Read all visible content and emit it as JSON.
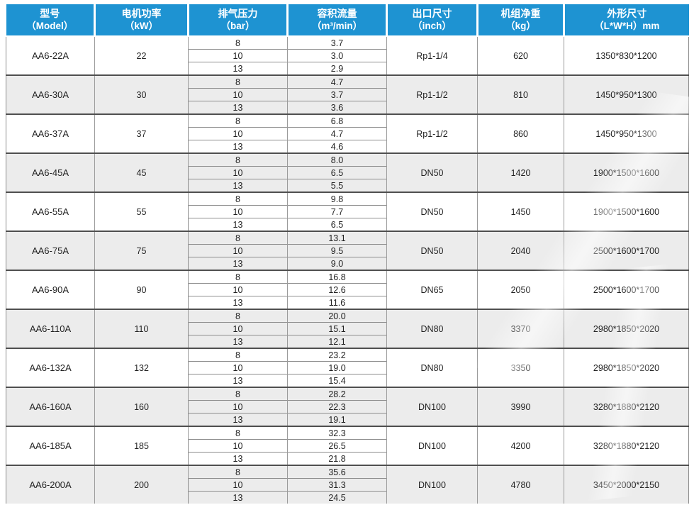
{
  "colors": {
    "header_bg": "#1E93D2",
    "header_text": "#FFFFFF",
    "row_bg": "#FFFFFF",
    "row_alt_bg": "#ECECEC",
    "group_border": "#4F4F4F",
    "cell_border": "#9B9B9B",
    "body_text": "#222222"
  },
  "table": {
    "headers": [
      {
        "line1": "型号",
        "line2": "（Model）"
      },
      {
        "line1": "电机功率",
        "line2": "（kW）"
      },
      {
        "line1": "排气压力",
        "line2": "（bar）"
      },
      {
        "line1": "容积流量",
        "line2": "（m³/min）"
      },
      {
        "line1": "出口尺寸",
        "line2": "（inch）"
      },
      {
        "line1": "机组净重",
        "line2": "（kg）"
      },
      {
        "line1": "外形尺寸",
        "line2": "（L*W*H）mm"
      }
    ],
    "models": [
      {
        "model": "AA6-22A",
        "power": "22",
        "rows": [
          [
            "8",
            "3.7"
          ],
          [
            "10",
            "3.0"
          ],
          [
            "13",
            "2.9"
          ]
        ],
        "outlet": "Rp1-1/4",
        "weight": "620",
        "dims": "1350*830*1200"
      },
      {
        "model": "AA6-30A",
        "power": "30",
        "rows": [
          [
            "8",
            "4.7"
          ],
          [
            "10",
            "3.7"
          ],
          [
            "13",
            "3.6"
          ]
        ],
        "outlet": "Rp1-1/2",
        "weight": "810",
        "dims": "1450*950*1300"
      },
      {
        "model": "AA6-37A",
        "power": "37",
        "rows": [
          [
            "8",
            "6.8"
          ],
          [
            "10",
            "4.7"
          ],
          [
            "13",
            "4.6"
          ]
        ],
        "outlet": "Rp1-1/2",
        "weight": "860",
        "dims": "1450*950*1300"
      },
      {
        "model": "AA6-45A",
        "power": "45",
        "rows": [
          [
            "8",
            "8.0"
          ],
          [
            "10",
            "6.5"
          ],
          [
            "13",
            "5.5"
          ]
        ],
        "outlet": "DN50",
        "weight": "1420",
        "dims": "1900*1500*1600"
      },
      {
        "model": "AA6-55A",
        "power": "55",
        "rows": [
          [
            "8",
            "9.8"
          ],
          [
            "10",
            "7.7"
          ],
          [
            "13",
            "6.5"
          ]
        ],
        "outlet": "DN50",
        "weight": "1450",
        "dims": "1900*1500*1600"
      },
      {
        "model": "AA6-75A",
        "power": "75",
        "rows": [
          [
            "8",
            "13.1"
          ],
          [
            "10",
            "9.5"
          ],
          [
            "13",
            "9.0"
          ]
        ],
        "outlet": "DN50",
        "weight": "2040",
        "dims": "2500*1600*1700"
      },
      {
        "model": "AA6-90A",
        "power": "90",
        "rows": [
          [
            "8",
            "16.8"
          ],
          [
            "10",
            "12.6"
          ],
          [
            "13",
            "11.6"
          ]
        ],
        "outlet": "DN65",
        "weight": "2050",
        "dims": "2500*1600*1700"
      },
      {
        "model": "AA6-110A",
        "power": "110",
        "rows": [
          [
            "8",
            "20.0"
          ],
          [
            "10",
            "15.1"
          ],
          [
            "13",
            "12.1"
          ]
        ],
        "outlet": "DN80",
        "weight": "3370",
        "dims": "2980*1850*2020"
      },
      {
        "model": "AA6-132A",
        "power": "132",
        "rows": [
          [
            "8",
            "23.2"
          ],
          [
            "10",
            "19.0"
          ],
          [
            "13",
            "15.4"
          ]
        ],
        "outlet": "DN80",
        "weight": "3350",
        "dims": "2980*1850*2020"
      },
      {
        "model": "AA6-160A",
        "power": "160",
        "rows": [
          [
            "8",
            "28.2"
          ],
          [
            "10",
            "22.3"
          ],
          [
            "13",
            "19.1"
          ]
        ],
        "outlet": "DN100",
        "weight": "3990",
        "dims": "3280*1880*2120"
      },
      {
        "model": "AA6-185A",
        "power": "185",
        "rows": [
          [
            "8",
            "32.3"
          ],
          [
            "10",
            "26.5"
          ],
          [
            "13",
            "21.8"
          ]
        ],
        "outlet": "DN100",
        "weight": "4200",
        "dims": "3280*1880*2120"
      },
      {
        "model": "AA6-200A",
        "power": "200",
        "rows": [
          [
            "8",
            "35.6"
          ],
          [
            "10",
            "31.3"
          ],
          [
            "13",
            "24.5"
          ]
        ],
        "outlet": "DN100",
        "weight": "4780",
        "dims": "3450*2000*2150"
      }
    ]
  }
}
